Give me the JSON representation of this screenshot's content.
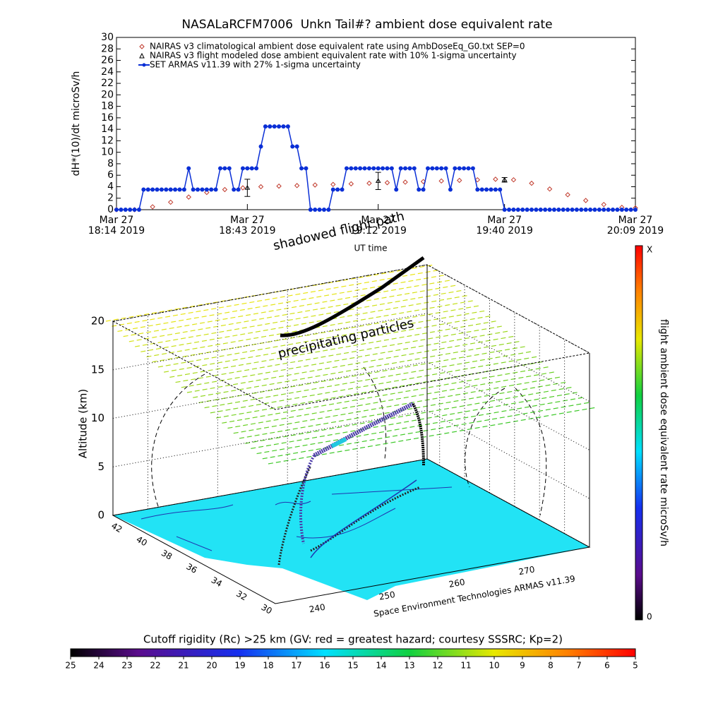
{
  "chart_data": [
    {
      "type": "line",
      "title": "NASALaRCFM7006  Unkn Tail#? ambient dose equivalent rate",
      "ylabel": "dH*(10)/dt microSv/h",
      "xlabel": "UT time",
      "xlim": [
        1094,
        1209
      ],
      "xticks": [
        {
          "value": 1094,
          "label": [
            "Mar 27",
            "18:14 2019"
          ]
        },
        {
          "value": 1123,
          "label": [
            "Mar 27",
            "18:43 2019"
          ]
        },
        {
          "value": 1152,
          "label": [
            "Mar 27",
            "19:12 2019"
          ]
        },
        {
          "value": 1180,
          "label": [
            "Mar 27",
            "19:40 2019"
          ]
        },
        {
          "value": 1209,
          "label": [
            "Mar 27",
            "20:09 2019"
          ]
        }
      ],
      "ylim": [
        0,
        30
      ],
      "yticks": [
        0,
        2,
        4,
        6,
        8,
        10,
        12,
        14,
        16,
        18,
        20,
        22,
        24,
        26,
        28,
        30
      ],
      "series": [
        {
          "name": "NAIRAS v3 climatological ambient dose equivalent rate using AmbDoseEq_G0.txt SEP=0",
          "color": "#c0392b",
          "marker": "diamond",
          "x": [
            1094,
            1098,
            1102,
            1106,
            1110,
            1114,
            1118,
            1122,
            1126,
            1130,
            1134,
            1138,
            1142,
            1146,
            1150,
            1154,
            1158,
            1162,
            1166,
            1170,
            1174,
            1178,
            1182,
            1186,
            1190,
            1194,
            1198,
            1202,
            1206,
            1209
          ],
          "values": [
            0,
            0,
            0.5,
            1.3,
            2.2,
            3.0,
            3.5,
            3.8,
            4.0,
            4.1,
            4.2,
            4.3,
            4.4,
            4.5,
            4.6,
            4.7,
            4.8,
            4.9,
            5.0,
            5.1,
            5.2,
            5.3,
            5.2,
            4.6,
            3.6,
            2.6,
            1.6,
            0.9,
            0.4,
            0.3
          ]
        },
        {
          "name": "NAIRAS v3 flight modeled dose ambient equivalent rate with 10% 1-sigma uncertainty",
          "color": "#000000",
          "marker": "triangle",
          "x": [
            1123,
            1152,
            1180
          ],
          "values": [
            3.8,
            5.0,
            5.2
          ],
          "errors": [
            1.5,
            1.5,
            0.4
          ]
        },
        {
          "name": "SET ARMAS v11.39 with 27% 1-sigma uncertainty",
          "color": "#0a2fd6",
          "marker": "dot-line",
          "x": [
            1094,
            1095,
            1096,
            1097,
            1098,
            1099,
            1100,
            1101,
            1102,
            1103,
            1104,
            1105,
            1106,
            1107,
            1108,
            1109,
            1110,
            1111,
            1112,
            1113,
            1114,
            1115,
            1116,
            1117,
            1118,
            1119,
            1120,
            1121,
            1122,
            1123,
            1124,
            1125,
            1126,
            1127,
            1128,
            1129,
            1130,
            1131,
            1132,
            1133,
            1134,
            1135,
            1136,
            1137,
            1138,
            1139,
            1140,
            1141,
            1142,
            1143,
            1144,
            1145,
            1146,
            1147,
            1148,
            1149,
            1150,
            1151,
            1152,
            1153,
            1154,
            1155,
            1156,
            1157,
            1158,
            1159,
            1160,
            1161,
            1162,
            1163,
            1164,
            1165,
            1166,
            1167,
            1168,
            1169,
            1170,
            1171,
            1172,
            1173,
            1174,
            1175,
            1176,
            1177,
            1178,
            1179,
            1180,
            1181,
            1182,
            1183,
            1184,
            1185,
            1186,
            1187,
            1188,
            1189,
            1190,
            1191,
            1192,
            1193,
            1194,
            1195,
            1196,
            1197,
            1198,
            1199,
            1200,
            1201,
            1202,
            1203,
            1204,
            1205,
            1206,
            1207,
            1208,
            1209
          ],
          "values": [
            0,
            0,
            0,
            0,
            0,
            0,
            3.5,
            3.5,
            3.5,
            3.5,
            3.5,
            3.5,
            3.5,
            3.5,
            3.5,
            3.5,
            7.2,
            3.5,
            3.5,
            3.5,
            3.5,
            3.5,
            3.5,
            7.2,
            7.2,
            7.2,
            3.5,
            3.5,
            7.2,
            7.2,
            7.2,
            7.2,
            11,
            14.5,
            14.5,
            14.5,
            14.5,
            14.5,
            14.5,
            11,
            11,
            7.2,
            7.2,
            0,
            0,
            0,
            0,
            0,
            3.5,
            3.5,
            3.5,
            7.2,
            7.2,
            7.2,
            7.2,
            7.2,
            7.2,
            7.2,
            7.2,
            7.2,
            7.2,
            7.2,
            3.5,
            7.2,
            7.2,
            7.2,
            7.2,
            3.5,
            3.5,
            7.2,
            7.2,
            7.2,
            7.2,
            7.2,
            3.5,
            7.2,
            7.2,
            7.2,
            7.2,
            7.2,
            3.5,
            3.5,
            3.5,
            3.5,
            3.5,
            3.5,
            0,
            0,
            0,
            0,
            0,
            0,
            0,
            0,
            0,
            0,
            0,
            0,
            0,
            0,
            0,
            0,
            0,
            0,
            0,
            0,
            0,
            0,
            0,
            0,
            0,
            0,
            0,
            0,
            0,
            0
          ]
        }
      ]
    },
    {
      "type": "surface3d",
      "zlabel": "Altitude (km)",
      "zlim": [
        0,
        20
      ],
      "zticks": [
        0,
        5,
        10,
        15,
        20
      ],
      "ylim": [
        43,
        30
      ],
      "yticks": [
        42,
        40,
        38,
        36,
        34,
        32,
        30
      ],
      "xlim": [
        235,
        280
      ],
      "xticks": [
        240,
        250,
        260,
        270
      ],
      "annotations": [
        "shadowed flight path",
        "precipitating particles"
      ],
      "caption": "Space Environment Technologies ARMAS v11.39"
    },
    {
      "type": "colorbar",
      "orientation": "vertical",
      "label": "flight ambient dose equivalent rate microSv/h",
      "top_label": "X",
      "bottom_value": 0
    },
    {
      "type": "colorbar",
      "orientation": "horizontal",
      "title": "Cutoff rigidity (Rc) >25 km (GV: red = greatest hazard; courtesy SSSRC; Kp=2)",
      "xlim": [
        25,
        5
      ],
      "xticks": [
        25,
        24,
        23,
        22,
        21,
        20,
        19,
        18,
        17,
        16,
        15,
        14,
        13,
        12,
        11,
        10,
        9,
        8,
        7,
        6,
        5
      ]
    }
  ]
}
